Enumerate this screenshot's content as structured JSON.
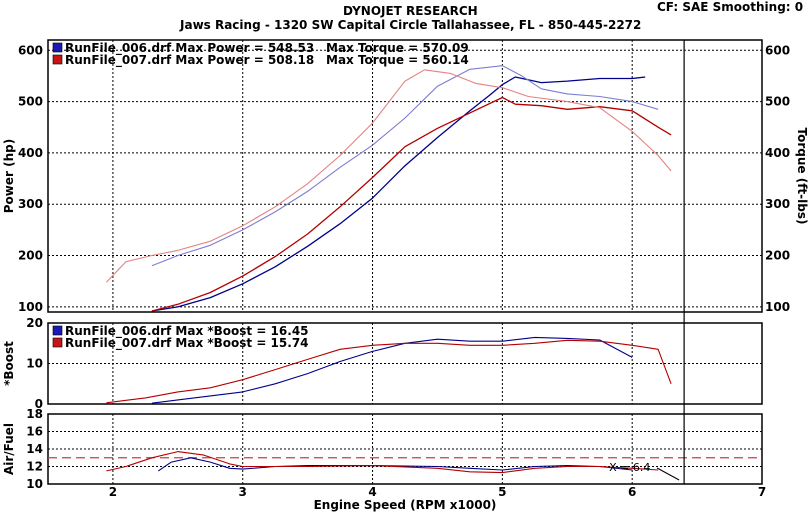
{
  "header": {
    "title": "DYNOJET RESEARCH",
    "shop": "Jaws Racing - 1320 SW Capital Circle Tallahassee, FL - 850-445-2272",
    "cf": "CF: SAE  Smoothing: 0"
  },
  "chart_data": [
    {
      "type": "line",
      "panel": "power_torque",
      "ylabel": "Power (hp)",
      "ylabel_right": "Torque (ft-lbs)",
      "ylim": [
        90,
        620
      ],
      "yticks": [
        100,
        200,
        300,
        400,
        500,
        600
      ],
      "xlim": [
        1.5,
        7
      ],
      "legend": [
        {
          "label": "RunFile_006.drf Max Power = 548.53",
          "torque": "Max Torque = 570.09",
          "color": "#1a1ab4"
        },
        {
          "label": "RunFile_007.drf Max Power = 508.18",
          "torque": "Max Torque = 560.14",
          "color": "#c81414"
        }
      ],
      "series": [
        {
          "name": "RunFile_006.drf Power",
          "color": "#00008c",
          "width": 1.3,
          "x": [
            2.3,
            2.5,
            2.75,
            3.0,
            3.25,
            3.5,
            3.75,
            4.0,
            4.25,
            4.5,
            4.75,
            4.9,
            5.0,
            5.1,
            5.3,
            5.5,
            5.75,
            6.0,
            6.1
          ],
          "y": [
            92,
            100,
            118,
            145,
            178,
            218,
            262,
            312,
            375,
            430,
            482,
            512,
            533,
            548,
            537,
            540,
            545,
            545,
            548
          ]
        },
        {
          "name": "RunFile_006.drf Torque",
          "color": "#7d7dd2",
          "width": 1.1,
          "x": [
            2.3,
            2.5,
            2.75,
            3.0,
            3.25,
            3.5,
            3.75,
            4.0,
            4.25,
            4.5,
            4.75,
            5.0,
            5.15,
            5.3,
            5.5,
            5.75,
            6.0,
            6.2
          ],
          "y": [
            180,
            200,
            220,
            250,
            285,
            325,
            372,
            415,
            468,
            530,
            563,
            570,
            550,
            525,
            515,
            510,
            500,
            485
          ]
        },
        {
          "name": "RunFile_007.drf Power",
          "color": "#b40000",
          "width": 1.3,
          "x": [
            2.3,
            2.5,
            2.75,
            3.0,
            3.25,
            3.5,
            3.75,
            4.0,
            4.25,
            4.5,
            4.75,
            5.0,
            5.1,
            5.3,
            5.5,
            5.75,
            6.0,
            6.2,
            6.3
          ],
          "y": [
            92,
            105,
            128,
            160,
            198,
            242,
            295,
            352,
            412,
            448,
            478,
            508,
            495,
            492,
            485,
            490,
            482,
            450,
            435
          ]
        },
        {
          "name": "RunFile_007.drf Torque",
          "color": "#e68282",
          "width": 1.1,
          "x": [
            1.95,
            2.1,
            2.3,
            2.5,
            2.75,
            3.0,
            3.25,
            3.5,
            3.75,
            4.0,
            4.25,
            4.4,
            4.6,
            4.8,
            5.0,
            5.2,
            5.5,
            5.75,
            6.0,
            6.2,
            6.3
          ],
          "y": [
            148,
            188,
            200,
            210,
            228,
            258,
            295,
            340,
            395,
            458,
            540,
            562,
            555,
            535,
            527,
            510,
            500,
            488,
            442,
            395,
            365
          ]
        }
      ]
    },
    {
      "type": "line",
      "panel": "boost",
      "ylabel": "*Boost",
      "ylim": [
        0,
        20
      ],
      "yticks": [
        0,
        10,
        20
      ],
      "xlim": [
        1.5,
        7
      ],
      "legend": [
        {
          "label": "RunFile_006.drf Max *Boost = 16.45",
          "color": "#1a1ab4"
        },
        {
          "label": "RunFile_007.drf Max *Boost = 15.74",
          "color": "#c81414"
        }
      ],
      "series": [
        {
          "name": "RunFile_006.drf *Boost",
          "color": "#00008c",
          "width": 1.1,
          "x": [
            2.3,
            2.5,
            2.75,
            3.0,
            3.25,
            3.5,
            3.75,
            4.0,
            4.25,
            4.5,
            4.75,
            5.0,
            5.25,
            5.5,
            5.75,
            6.0
          ],
          "y": [
            0.2,
            1.0,
            2.0,
            3.0,
            5.0,
            7.5,
            10.5,
            13.0,
            15.0,
            16.0,
            15.5,
            15.5,
            16.45,
            16.2,
            15.8,
            11.5
          ]
        },
        {
          "name": "RunFile_007.drf *Boost",
          "color": "#b40000",
          "width": 1.1,
          "x": [
            1.95,
            2.25,
            2.5,
            2.75,
            3.0,
            3.25,
            3.5,
            3.75,
            4.0,
            4.25,
            4.5,
            4.75,
            5.0,
            5.25,
            5.5,
            5.75,
            6.0,
            6.2,
            6.3
          ],
          "y": [
            0.3,
            1.5,
            3.0,
            4.0,
            6.0,
            8.5,
            11.0,
            13.5,
            14.5,
            15.0,
            15.0,
            14.5,
            14.5,
            15.0,
            15.74,
            15.5,
            14.5,
            13.5,
            5.0
          ]
        }
      ]
    },
    {
      "type": "line",
      "panel": "air_fuel",
      "ylabel": "Air/Fuel",
      "xlabel": "Engine Speed (RPM x1000)",
      "ylim": [
        10,
        18
      ],
      "yticks": [
        10,
        12,
        14,
        16,
        18
      ],
      "xlim": [
        1.5,
        7
      ],
      "xticks": [
        2,
        3,
        4,
        5,
        6,
        7
      ],
      "reference_line": 13,
      "annotation": "X = 6.4",
      "cursor_x": 6.4,
      "series": [
        {
          "name": "RunFile_006.drf Air/Fuel",
          "color": "#00008c",
          "width": 1.1,
          "x": [
            2.35,
            2.45,
            2.6,
            2.75,
            2.9,
            3.0,
            3.25,
            3.5,
            4.0,
            4.5,
            4.75,
            5.0,
            5.25,
            5.5,
            5.75,
            6.0
          ],
          "y": [
            11.5,
            12.5,
            13.0,
            12.5,
            11.8,
            11.7,
            12.0,
            12.1,
            12.1,
            12.0,
            11.8,
            11.6,
            12.0,
            12.1,
            12.0,
            11.6
          ]
        },
        {
          "name": "RunFile_007.drf Air/Fuel",
          "color": "#b40000",
          "width": 1.1,
          "x": [
            1.95,
            2.1,
            2.3,
            2.5,
            2.7,
            2.9,
            3.0,
            3.25,
            3.5,
            4.0,
            4.5,
            4.75,
            5.0,
            5.25,
            5.5,
            5.75,
            6.0,
            6.2
          ],
          "y": [
            11.5,
            12.0,
            13.0,
            13.7,
            13.3,
            12.3,
            12.0,
            12.0,
            12.0,
            12.1,
            11.8,
            11.4,
            11.3,
            11.8,
            12.0,
            12.0,
            11.8,
            11.6
          ]
        }
      ]
    }
  ]
}
